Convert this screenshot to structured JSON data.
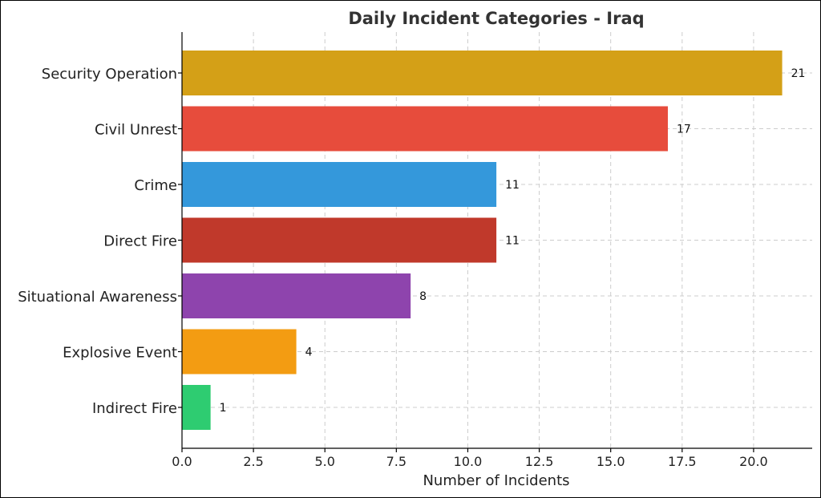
{
  "chart_data": {
    "type": "bar",
    "orientation": "horizontal",
    "title": "Daily Incident Categories - Iraq",
    "xlabel": "Number of Incidents",
    "ylabel": "",
    "xlim": [
      0,
      22.05
    ],
    "xticks": [
      0,
      2.5,
      5,
      7.5,
      10,
      12.5,
      15,
      17.5,
      20
    ],
    "xtick_labels": [
      "0.0",
      "2.5",
      "5.0",
      "7.5",
      "10.0",
      "12.5",
      "15.0",
      "17.5",
      "20.0"
    ],
    "grid": true,
    "categories": [
      "Security Operation",
      "Civil Unrest",
      "Crime",
      "Direct Fire",
      "Situational Awareness",
      "Explosive Event",
      "Indirect Fire"
    ],
    "values": [
      21,
      17,
      11,
      11,
      8,
      4,
      1
    ],
    "value_labels": [
      "21",
      "17",
      "11",
      "11",
      "8",
      "4",
      "1"
    ],
    "colors": [
      "#d4a017",
      "#e74c3c",
      "#3498db",
      "#c0392b",
      "#8e44ad",
      "#f39c12",
      "#2ecc71"
    ]
  }
}
